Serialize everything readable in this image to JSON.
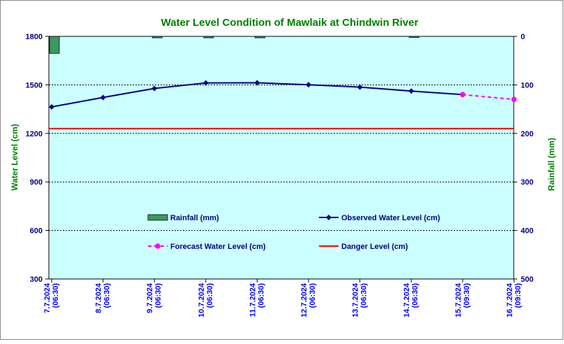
{
  "chart_data": {
    "type": "line",
    "title": "Water Level Condition of Mawlaik at Chindwin River",
    "ylabel_left": "Water Level (cm)",
    "ylabel_right": "Rainfall (mm)",
    "ylim_left": [
      300,
      1800
    ],
    "yticks_left": [
      "300",
      "600",
      "900",
      "1200",
      "1500",
      "1800"
    ],
    "ylim_right": [
      0,
      500
    ],
    "yticks_right": [
      "0",
      "100",
      "200",
      "300",
      "400",
      "500"
    ],
    "right_axis_inverted": true,
    "categories": [
      [
        "7.7.2024",
        "(06:30)"
      ],
      [
        "8.7.2024",
        "(06:30)"
      ],
      [
        "9.7.2024",
        "(06:30)"
      ],
      [
        "10.7.2024",
        "(06:30)"
      ],
      [
        "11.7.2024",
        "(06:30)"
      ],
      [
        "12.7.2024",
        "(06:30)"
      ],
      [
        "13.7.2024",
        "(06:30)"
      ],
      [
        "14.7.2024",
        "(06:30)"
      ],
      [
        "15.7.2024",
        "(09:30)"
      ],
      [
        "16.7.2024",
        "(09:30)"
      ]
    ],
    "series": [
      {
        "name": "Rainfall (mm)",
        "type": "bar",
        "axis": "right",
        "color": "#3a9a5e",
        "values": [
          35,
          0,
          3,
          3,
          3,
          0,
          0,
          1,
          0,
          null
        ]
      },
      {
        "name": "Observed Water Level (cm)",
        "type": "line",
        "axis": "left",
        "color": "#000080",
        "values": [
          1364,
          1422,
          1478,
          1512,
          1513,
          1501,
          1486,
          1462,
          1440,
          null
        ]
      },
      {
        "name": "Forecast Water Level (cm)",
        "type": "line",
        "axis": "left",
        "color": "#ff00ff",
        "dashed": true,
        "values": [
          null,
          null,
          null,
          null,
          null,
          null,
          null,
          null,
          1440,
          1410
        ]
      },
      {
        "name": "Danger Level (cm)",
        "type": "line",
        "axis": "left",
        "color": "#ff0000",
        "values": [
          1230,
          1230,
          1230,
          1230,
          1230,
          1230,
          1230,
          1230,
          1230,
          1230
        ]
      }
    ],
    "grid": true,
    "plot_background": "#ccffff",
    "legend_position": "inside-bottom"
  },
  "colors": {
    "title": "#008000",
    "axis_labels": "#008000",
    "ticks": "#000080",
    "dates": "#0000ff",
    "legend_text": "#000080"
  }
}
